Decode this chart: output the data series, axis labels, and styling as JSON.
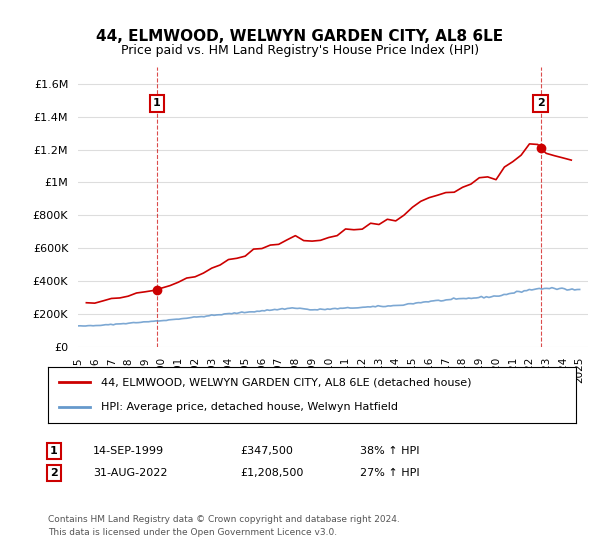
{
  "title": "44, ELMWOOD, WELWYN GARDEN CITY, AL8 6LE",
  "subtitle": "Price paid vs. HM Land Registry's House Price Index (HPI)",
  "ylabel_ticks": [
    "£0",
    "£200K",
    "£400K",
    "£600K",
    "£800K",
    "£1M",
    "£1.2M",
    "£1.4M",
    "£1.6M"
  ],
  "ylim": [
    0,
    1700000
  ],
  "yticks": [
    0,
    200000,
    400000,
    600000,
    800000,
    1000000,
    1200000,
    1400000,
    1600000
  ],
  "xmin": 1995.0,
  "xmax": 2025.5,
  "red_line_color": "#cc0000",
  "blue_line_color": "#6699cc",
  "marker1_x": 1999.71,
  "marker1_y": 347500,
  "marker2_x": 2022.66,
  "marker2_y": 1208500,
  "vline1_x": 1999.71,
  "vline2_x": 2022.66,
  "legend_label_red": "44, ELMWOOD, WELWYN GARDEN CITY, AL8 6LE (detached house)",
  "legend_label_blue": "HPI: Average price, detached house, Welwyn Hatfield",
  "annotation1_num": "1",
  "annotation2_num": "2",
  "table_row1": [
    "1",
    "14-SEP-1999",
    "£347,500",
    "38% ↑ HPI"
  ],
  "table_row2": [
    "2",
    "31-AUG-2022",
    "£1,208,500",
    "27% ↑ HPI"
  ],
  "footer": "Contains HM Land Registry data © Crown copyright and database right 2024.\nThis data is licensed under the Open Government Licence v3.0.",
  "background_color": "#ffffff",
  "grid_color": "#dddddd"
}
